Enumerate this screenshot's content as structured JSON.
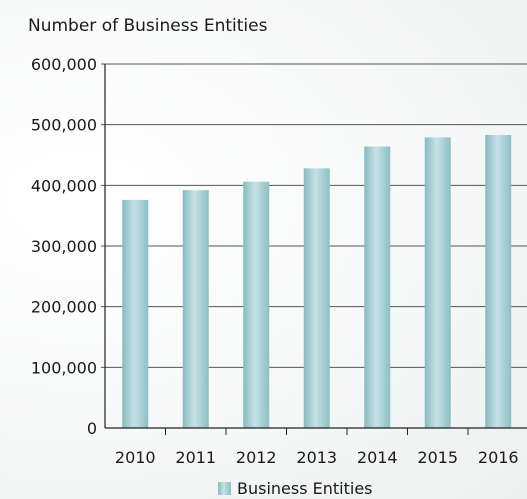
{
  "chart_data": {
    "type": "bar",
    "title": "Number of Business Entities",
    "xlabel": "",
    "ylabel": "",
    "categories": [
      "2010",
      "2011",
      "2012",
      "2013",
      "2014",
      "2015",
      "2016"
    ],
    "series": [
      {
        "name": "Business Entities",
        "values": [
          376000,
          392000,
          406000,
          428000,
          464000,
          479000,
          483000
        ]
      }
    ],
    "ylim": [
      0,
      600000
    ],
    "yticks": [
      0,
      100000,
      200000,
      300000,
      400000,
      500000,
      600000
    ],
    "ytick_labels": [
      "0",
      "100,000",
      "200,000",
      "300,000",
      "400,000",
      "500,000",
      "600,000"
    ],
    "grid": true,
    "legend_position": "bottom-center",
    "colors": {
      "bar": "#9fcbd0",
      "bar_light": "#c9e3e6",
      "bar_dark": "#7fb5bb",
      "grid": "#555555"
    }
  }
}
